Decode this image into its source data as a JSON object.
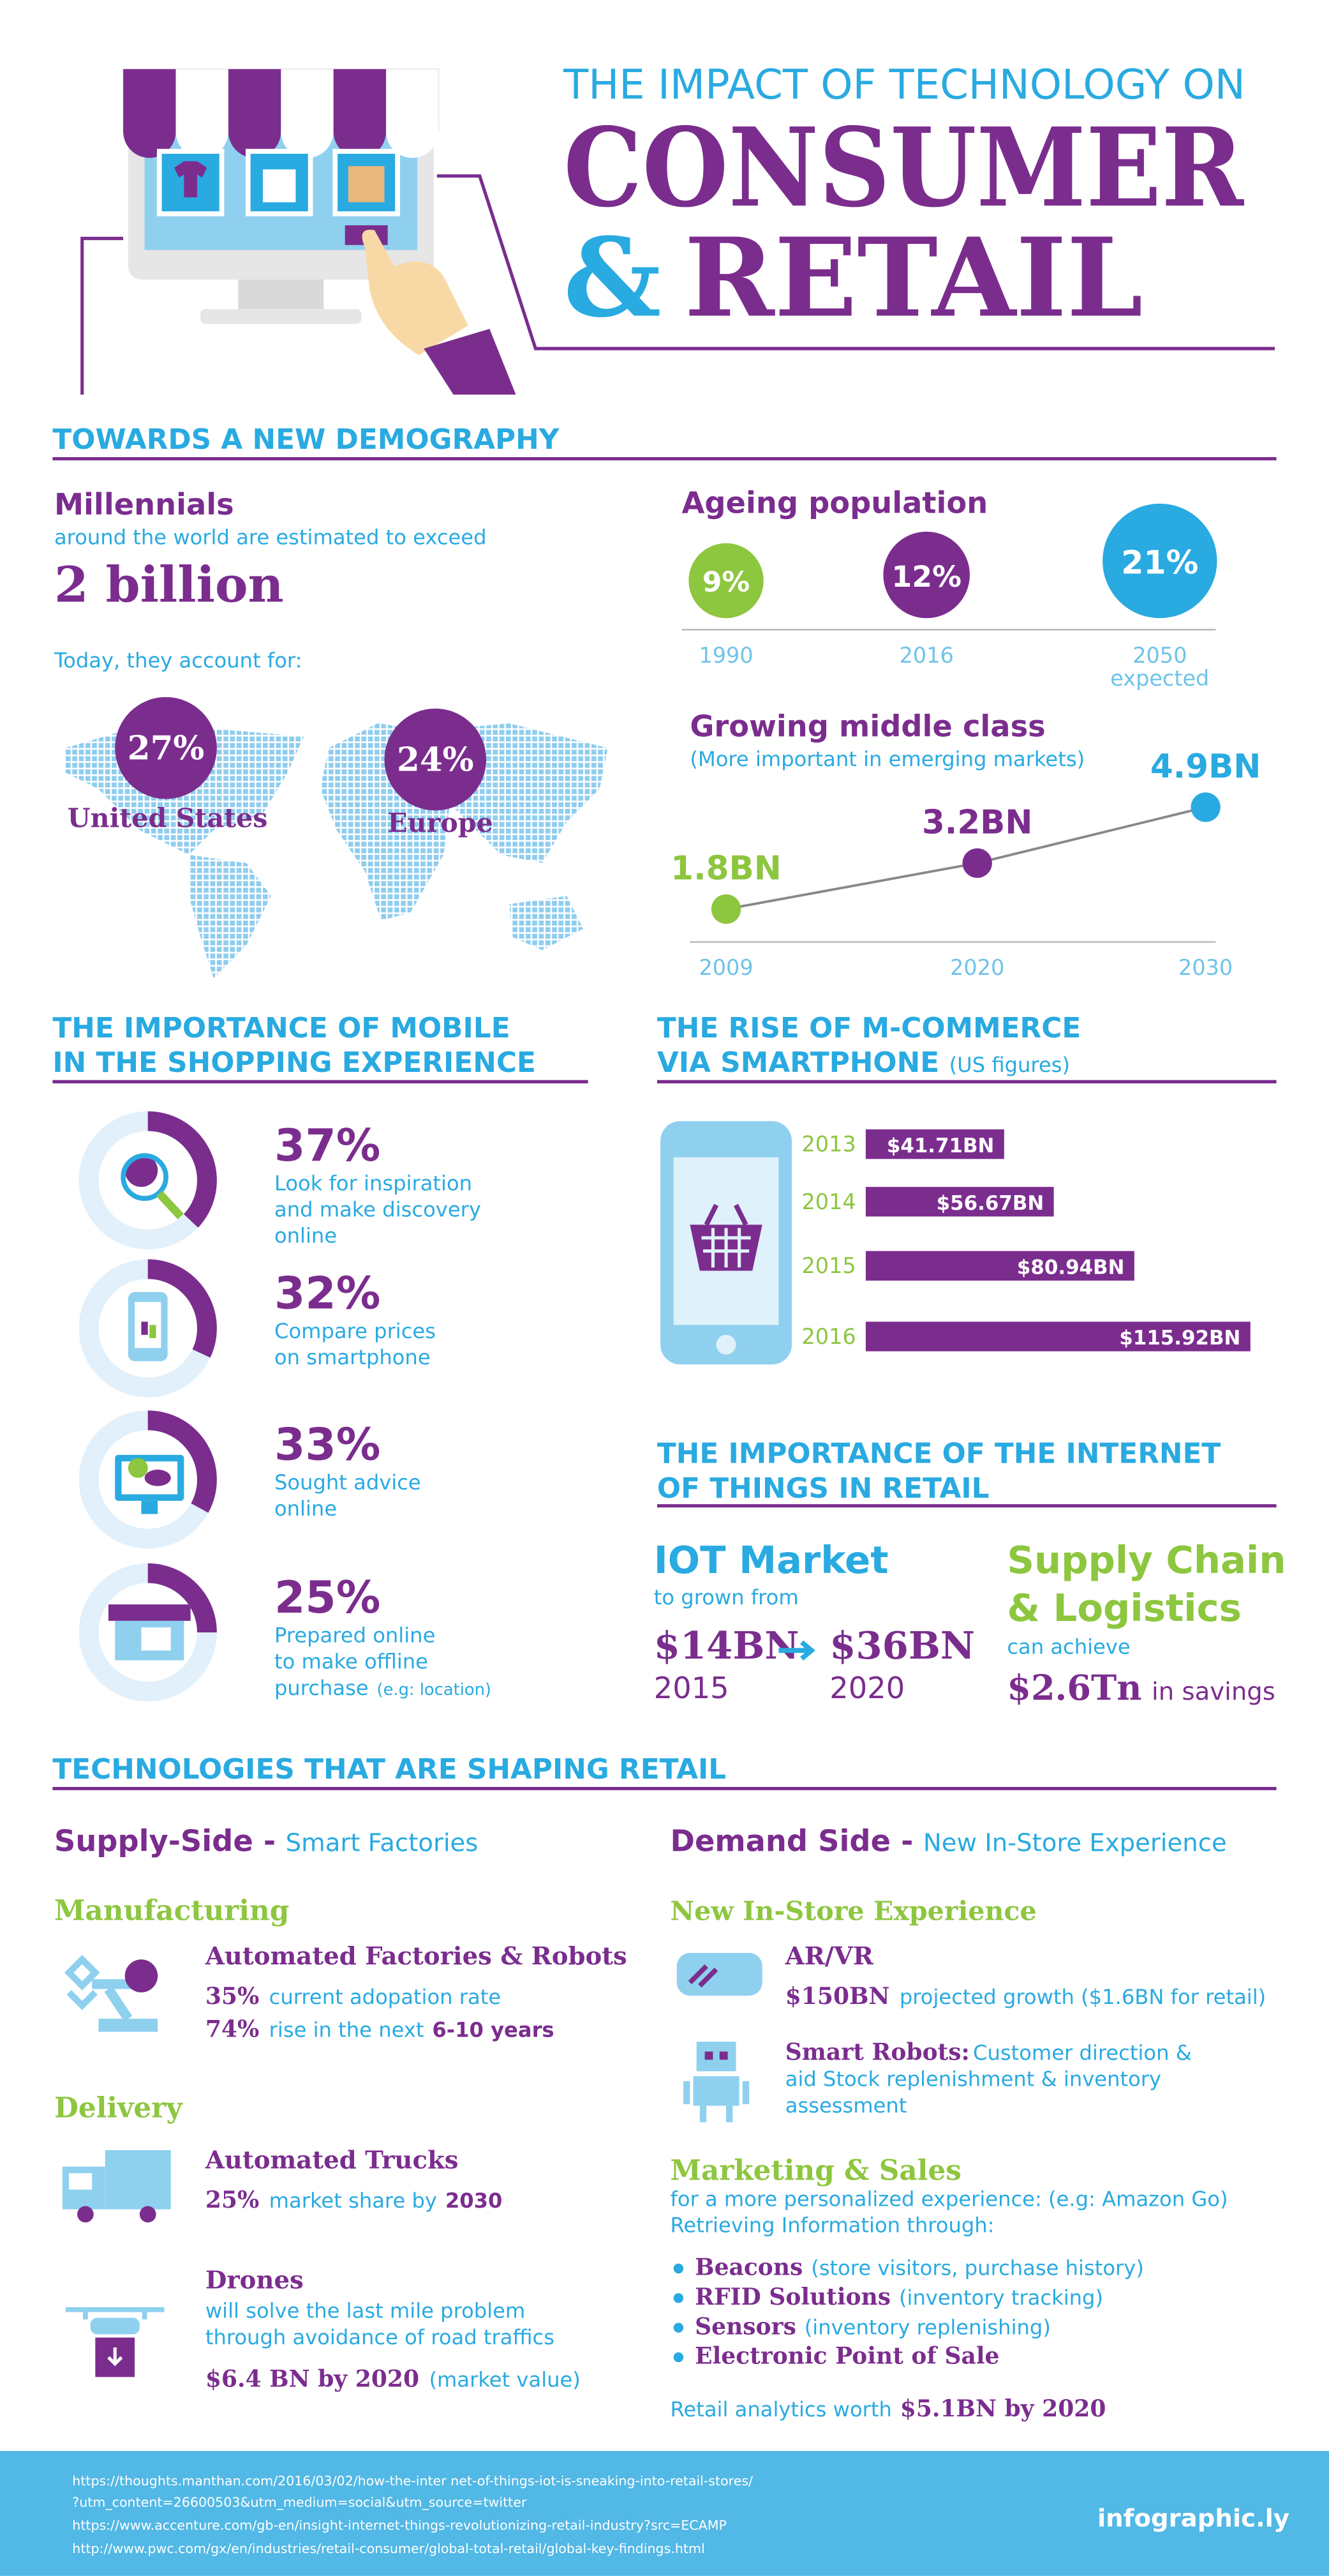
{
  "header": {
    "kicker": "THE IMPACT OF TECHNOLOGY ON",
    "title_line1": "CONSUMER",
    "title_amp": "&",
    "title_line2": "RETAIL"
  },
  "demography": {
    "heading": "TOWARDS A NEW DEMOGRAPHY",
    "millennials": {
      "title": "Millennials",
      "subtitle": "around the world are estimated to exceed",
      "figure": "2 billion",
      "share_intro": "Today, they account for:",
      "regions": [
        {
          "value": "27%",
          "label": "United States"
        },
        {
          "value": "24%",
          "label": "Europe"
        }
      ]
    },
    "ageing": {
      "title": "Ageing population",
      "points": [
        {
          "value": 9,
          "label": "9%",
          "year": "1990"
        },
        {
          "value": 12,
          "label": "12%",
          "year": "2016"
        },
        {
          "value": 21,
          "label": "21%",
          "year": "2050",
          "note": "expected"
        }
      ]
    },
    "middle_class": {
      "title": "Growing middle class",
      "subtitle": "(More important in emerging markets)",
      "points": [
        {
          "year": 2009,
          "value": 1.8,
          "label": "1.8BN"
        },
        {
          "year": 2020,
          "value": 3.2,
          "label": "3.2BN"
        },
        {
          "year": 2030,
          "value": 4.9,
          "label": "4.9BN"
        }
      ]
    }
  },
  "mobile": {
    "heading": [
      "THE IMPORTANCE OF MOBILE",
      "IN THE SHOPPING EXPERIENCE"
    ],
    "items": [
      {
        "value": 37,
        "label": "37%",
        "lines": [
          "Look for inspiration",
          "and make discovery",
          "online"
        ]
      },
      {
        "value": 32,
        "label": "32%",
        "lines": [
          "Compare prices",
          "on smartphone"
        ]
      },
      {
        "value": 33,
        "label": "33%",
        "lines": [
          "Sought advice",
          "online"
        ]
      },
      {
        "value": 25,
        "label": "25%",
        "lines": [
          "Prepared online",
          "to make offline",
          "purchase"
        ],
        "note": "(e.g: location)"
      }
    ]
  },
  "mcommerce": {
    "heading": [
      "THE RISE OF M-COMMERCE",
      "VIA SMARTPHONE"
    ],
    "heading_note": "(US figures)",
    "bars": [
      {
        "year": 2013,
        "value": 41.71,
        "label": "$41.71BN"
      },
      {
        "year": 2014,
        "value": 56.67,
        "label": "$56.67BN"
      },
      {
        "year": 2015,
        "value": 80.94,
        "label": "$80.94BN"
      },
      {
        "year": 2016,
        "value": 115.92,
        "label": "$115.92BN"
      }
    ]
  },
  "iot": {
    "heading": [
      "THE IMPORTANCE OF THE INTERNET",
      "OF THINGS IN RETAIL"
    ],
    "market": {
      "title": "IOT Market",
      "subtitle": "to grown from",
      "from": "$14BN",
      "to": "$36BN",
      "from_year": "2015",
      "to_year": "2020"
    },
    "supply_chain": {
      "title": [
        "Supply Chain",
        "& Logistics"
      ],
      "subtitle": "can achieve",
      "figure": "$2.6Tn",
      "suffix": "in savings"
    }
  },
  "tech": {
    "heading": "TECHNOLOGIES THAT ARE SHAPING RETAIL",
    "supply": {
      "title": "Supply-Side -",
      "subtitle": "Smart Factories",
      "manufacturing": {
        "heading": "Manufacturing",
        "title": "Automated Factories & Robots",
        "stats": [
          {
            "figure": "35%",
            "text": "current adopation rate"
          },
          {
            "figure": "74%",
            "text": "rise in the next",
            "emphasis": "6-10 years"
          }
        ]
      },
      "delivery": {
        "heading": "Delivery",
        "trucks": {
          "title": "Automated Trucks",
          "figure": "25%",
          "text": "market share by",
          "emphasis": "2030"
        },
        "drones": {
          "title": "Drones",
          "lines": [
            "will solve the last mile problem",
            "through avoidance of road traffics"
          ],
          "figure": "$6.4 BN by 2020",
          "note": "(market value)"
        }
      }
    },
    "demand": {
      "title": "Demand Side -",
      "subtitle": "New In-Store Experience",
      "in_store": {
        "heading": "New In-Store Experience",
        "arvr": {
          "title": "AR/VR",
          "figure": "$150BN",
          "text": "projected growth ($1.6BN for retail)"
        },
        "robots": {
          "title": "Smart Robots:",
          "lines": [
            "Customer direction &",
            "aid Stock replenishment & inventory",
            "assessment"
          ]
        }
      },
      "marketing": {
        "heading": "Marketing & Sales",
        "lines": [
          "for a more personalized experience: (e.g: Amazon Go)",
          "Retrieving Information through:"
        ],
        "items": [
          {
            "name": "Beacons",
            "note": "(store visitors, purchase history)"
          },
          {
            "name": "RFID Solutions",
            "note": "(inventory tracking)"
          },
          {
            "name": "Sensors",
            "note": "(inventory replenishing)"
          },
          {
            "name": "Electronic Point of Sale"
          }
        ],
        "footer": "Retail analytics worth",
        "footer_figure": "$5.1BN by 2020"
      }
    }
  },
  "footer": {
    "sources": [
      "https://thoughts.manthan.com/2016/03/02/how-the-inter net-of-things-iot-is-sneaking-into-retail-stores/",
      "?utm_content=26600503&utm_medium=social&utm_source=twitter",
      "https://www.accenture.com/gb-en/insight-internet-things-revolutionizing-retail-industry?src=ECAMP",
      "http://www.pwc.com/gx/en/industries/retail-consumer/global-total-retail/global-key-findings.html"
    ],
    "brand": "infographic.ly"
  }
}
